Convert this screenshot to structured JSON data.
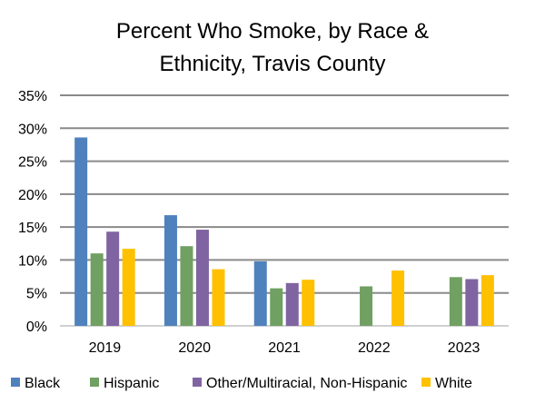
{
  "chart_data": {
    "type": "bar",
    "title_lines": [
      "Percent Who Smoke, by Race &",
      "Ethnicity, Travis County"
    ],
    "xlabel": "",
    "ylabel": "",
    "ylim": [
      0,
      35
    ],
    "y_ticks": [
      0,
      5,
      10,
      15,
      20,
      25,
      30,
      35
    ],
    "y_tick_labels": [
      "0%",
      "5%",
      "10%",
      "15%",
      "20%",
      "25%",
      "30%",
      "35%"
    ],
    "grid": true,
    "legend_position": "bottom",
    "categories": [
      "2019",
      "2020",
      "2021",
      "2022",
      "2023"
    ],
    "series": [
      {
        "name": "Black",
        "color": "#4f81bd",
        "values": [
          28.6,
          16.8,
          9.8,
          null,
          null
        ]
      },
      {
        "name": "Hispanic",
        "color": "#70a062",
        "values": [
          11.0,
          12.1,
          5.7,
          6.0,
          7.4
        ]
      },
      {
        "name": "Other/Multiracial, Non-Hispanic",
        "color": "#8064a2",
        "values": [
          14.3,
          14.6,
          6.5,
          null,
          7.1
        ]
      },
      {
        "name": "White",
        "color": "#ffc000",
        "values": [
          11.7,
          8.6,
          7.0,
          8.4,
          7.7
        ]
      }
    ]
  }
}
